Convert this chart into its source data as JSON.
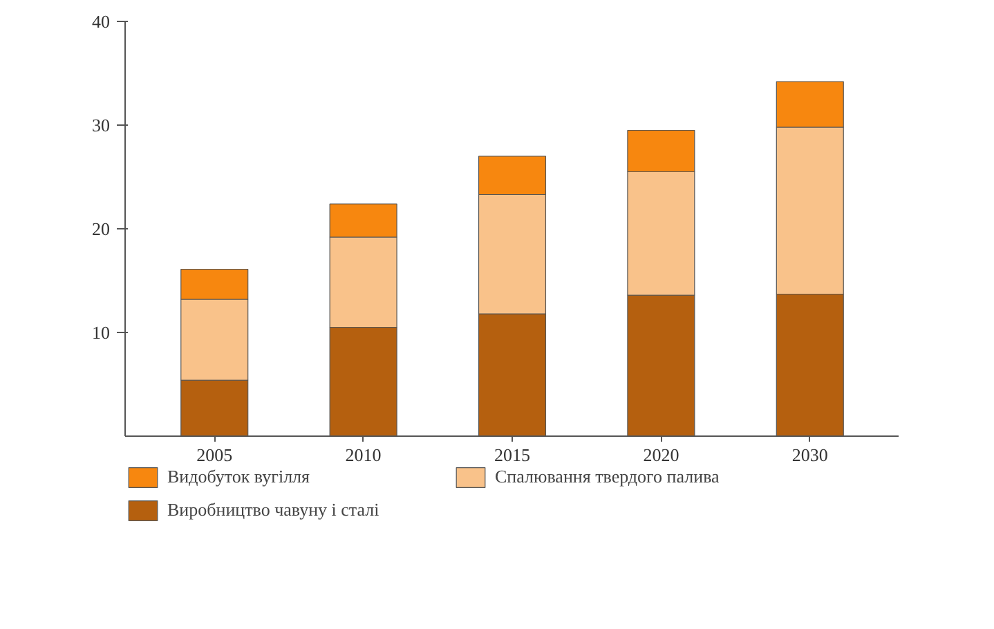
{
  "chart_data": {
    "type": "bar",
    "stacked": true,
    "categories": [
      "2005",
      "2010",
      "2015",
      "2020",
      "2030"
    ],
    "series": [
      {
        "name": "Виробництво чавуну і сталі",
        "color": "#b5600f",
        "values": [
          5.4,
          10.5,
          11.8,
          13.6,
          13.7
        ]
      },
      {
        "name": "Спалювання твердого палива",
        "color": "#f9c28a",
        "values": [
          7.8,
          8.7,
          11.5,
          11.9,
          16.1
        ]
      },
      {
        "name": "Видобуток вугілля",
        "color": "#f7870f",
        "values": [
          2.9,
          3.2,
          3.7,
          4.0,
          4.4
        ]
      }
    ],
    "ylim": [
      0,
      40
    ],
    "yticks": [
      10,
      20,
      30,
      40
    ],
    "grid": false,
    "legend": "bottom"
  }
}
